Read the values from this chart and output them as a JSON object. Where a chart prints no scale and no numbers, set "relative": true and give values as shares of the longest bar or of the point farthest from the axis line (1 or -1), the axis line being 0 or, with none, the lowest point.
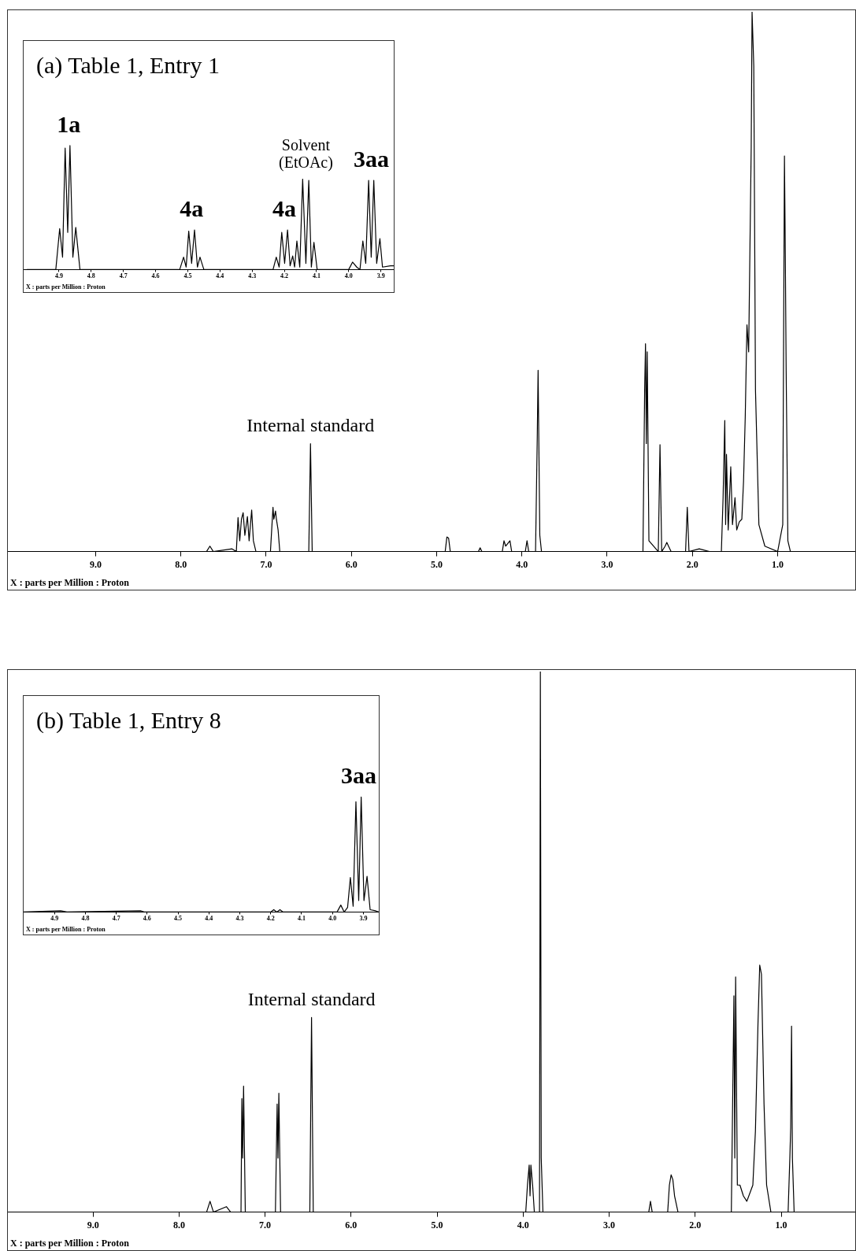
{
  "chart_data": [
    {
      "type": "line",
      "relative": true,
      "xlabel": "X : parts per Million : Proton",
      "xlim": [
        10.03,
        0.09
      ],
      "xticks": [
        {
          "value": 9,
          "label": "9.0"
        },
        {
          "value": 8,
          "label": "8.0"
        },
        {
          "value": 7,
          "label": "7.0"
        },
        {
          "value": 6,
          "label": "6.0"
        },
        {
          "value": 5,
          "label": "5.0"
        },
        {
          "value": 4,
          "label": "4.0"
        },
        {
          "value": 3,
          "label": "3.0"
        },
        {
          "value": 2,
          "label": "2.0"
        },
        {
          "value": 1,
          "label": "1.0"
        }
      ],
      "annotations": [
        {
          "text": "Internal standard",
          "x": 6.48,
          "y": 0.2
        }
      ],
      "series": [
        {
          "color": "#000000",
          "x": [
            10.0,
            7.7,
            7.66,
            7.62,
            7.4,
            7.35,
            7.33,
            7.31,
            7.29,
            7.27,
            7.25,
            7.22,
            7.2,
            7.17,
            7.15,
            7.12,
            6.95,
            6.92,
            6.91,
            6.89,
            6.88,
            6.86,
            6.84,
            6.5,
            6.48,
            6.46,
            4.9,
            4.88,
            4.86,
            4.84,
            4.51,
            4.49,
            4.47,
            4.23,
            4.21,
            4.19,
            4.14,
            4.12,
            3.96,
            3.94,
            3.92,
            3.84,
            3.82,
            3.81,
            3.79,
            3.77,
            2.58,
            2.56,
            2.55,
            2.54,
            2.53,
            2.51,
            2.4,
            2.38,
            2.36,
            2.32,
            2.3,
            2.28,
            2.25,
            2.08,
            2.06,
            2.04,
            1.92,
            1.8,
            1.66,
            1.64,
            1.62,
            1.61,
            1.6,
            1.58,
            1.55,
            1.53,
            1.5,
            1.48,
            1.45,
            1.42,
            1.4,
            1.38,
            1.36,
            1.34,
            1.31,
            1.3,
            1.28,
            1.26,
            1.22,
            1.15,
            1.0,
            0.94,
            0.92,
            0.91,
            0.9,
            0.88,
            0.85,
            0.1
          ],
          "values": [
            0,
            0,
            0.01,
            0,
            0.005,
            0,
            0.063,
            0.02,
            0.06,
            0.072,
            0.03,
            0.065,
            0.02,
            0.077,
            0.02,
            0,
            0,
            0.082,
            0.06,
            0.075,
            0.06,
            0.04,
            0,
            0,
            0.2,
            0,
            0,
            0.027,
            0.025,
            0,
            0,
            0.007,
            0,
            0,
            0.02,
            0.01,
            0.02,
            0,
            0,
            0.02,
            0,
            0,
            0.21,
            0.336,
            0.03,
            0,
            0,
            0.3,
            0.385,
            0.2,
            0.37,
            0.02,
            0,
            0.198,
            0,
            0.01,
            0.017,
            0.01,
            0,
            0,
            0.082,
            0,
            0.005,
            0,
            0,
            0.1,
            0.243,
            0.05,
            0.18,
            0.04,
            0.157,
            0.05,
            0.1,
            0.04,
            0.055,
            0.06,
            0.13,
            0.25,
            0.42,
            0.37,
            0.75,
            1,
            0.9,
            0.3,
            0.05,
            0.01,
            0,
            0.05,
            0.733,
            0.55,
            0.334,
            0.02,
            0,
            0
          ]
        }
      ]
    },
    {
      "type": "line",
      "relative": true,
      "title": "(a) Table 1, Entry 1",
      "xlabel": "X : parts per Million : Proton",
      "xlim": [
        5.01,
        3.86
      ],
      "xticks": [
        4.9,
        4.8,
        4.7,
        4.6,
        4.5,
        4.4,
        4.3,
        4.2,
        4.1,
        {
          "value": 4,
          "label": "4.0"
        },
        3.9
      ],
      "annotations": [
        {
          "text": "1a",
          "x": 4.87,
          "y": 1.0
        },
        {
          "text": "4a",
          "x": 4.488,
          "y": 0.32
        },
        {
          "text": "4a",
          "x": 4.2,
          "y": 0.32
        },
        {
          "text": "Solvent (EtOAc)",
          "x": 4.133,
          "y": 0.73
        },
        {
          "text": "3aa",
          "x": 3.93,
          "y": 0.72
        }
      ],
      "series": [
        {
          "color": "#000000",
          "x": [
            5.0,
            4.91,
            4.898,
            4.889,
            4.881,
            4.873,
            4.866,
            4.857,
            4.848,
            4.835,
            4.525,
            4.513,
            4.505,
            4.497,
            4.488,
            4.479,
            4.47,
            4.462,
            4.45,
            4.235,
            4.225,
            4.216,
            4.208,
            4.199,
            4.19,
            4.182,
            4.174,
            4.168,
            4.161,
            4.152,
            4.143,
            4.133,
            4.124,
            4.116,
            4.108,
            4.098,
            4.0,
            3.988,
            3.975,
            3.965,
            3.956,
            3.947,
            3.938,
            3.93,
            3.922,
            3.913,
            3.903,
            3.895,
            3.87,
            3.86
          ],
          "values": [
            0,
            0,
            0.33,
            0.1,
            0.98,
            0.3,
            1.0,
            0.1,
            0.34,
            0,
            0,
            0.1,
            0.02,
            0.31,
            0.05,
            0.32,
            0.02,
            0.1,
            0,
            0,
            0.1,
            0.02,
            0.3,
            0.05,
            0.32,
            0.03,
            0.11,
            0.02,
            0.23,
            0.02,
            0.73,
            0.05,
            0.72,
            0.02,
            0.22,
            0,
            0,
            0.06,
            0.02,
            0,
            0.23,
            0.05,
            0.72,
            0.1,
            0.72,
            0.05,
            0.25,
            0.02,
            0.03,
            0.03
          ]
        }
      ]
    },
    {
      "type": "line",
      "relative": true,
      "xlabel": "X : parts per Million : Proton",
      "xlim": [
        9.99,
        0.14
      ],
      "xticks": [
        {
          "value": 9,
          "label": "9.0"
        },
        {
          "value": 8,
          "label": "8.0"
        },
        {
          "value": 7,
          "label": "7.0"
        },
        {
          "value": 6,
          "label": "6.0"
        },
        {
          "value": 5,
          "label": "5.0"
        },
        {
          "value": 4,
          "label": "4.0"
        },
        {
          "value": 3,
          "label": "3.0"
        },
        {
          "value": 2,
          "label": "2.0"
        },
        {
          "value": 1,
          "label": "1.0"
        }
      ],
      "annotations": [
        {
          "text": "Internal standard",
          "x": 6.46,
          "y": 0.36
        }
      ],
      "series": [
        {
          "color": "#000000",
          "x": [
            9.9,
            7.68,
            7.64,
            7.6,
            7.45,
            7.4,
            7.28,
            7.27,
            7.26,
            7.25,
            7.23,
            6.88,
            6.86,
            6.85,
            6.84,
            6.82,
            6.48,
            6.46,
            6.44,
            3.97,
            3.95,
            3.93,
            3.92,
            3.91,
            3.89,
            3.87,
            3.81,
            3.8,
            3.79,
            3.77,
            2.54,
            2.52,
            2.5,
            2.32,
            2.3,
            2.28,
            2.26,
            2.24,
            2.2,
            1.58,
            1.55,
            1.54,
            1.53,
            1.51,
            1.48,
            1.44,
            1.4,
            1.33,
            1.3,
            1.27,
            1.25,
            1.23,
            1.2,
            1.17,
            1.12,
            0.92,
            0.9,
            0.89,
            0.88,
            0.87,
            0.85,
            0.2
          ],
          "values": [
            0,
            0,
            0.02,
            0,
            0.01,
            0,
            0,
            0.21,
            0.1,
            0.233,
            0,
            0,
            0.2,
            0.1,
            0.22,
            0,
            0,
            0.36,
            0,
            0,
            0.05,
            0.087,
            0.03,
            0.087,
            0.05,
            0,
            0,
            1,
            0.1,
            0,
            0,
            0.02,
            0,
            0,
            0.05,
            0.069,
            0.06,
            0.03,
            0,
            0,
            0.4,
            0.1,
            0.435,
            0.05,
            0.05,
            0.03,
            0.02,
            0.05,
            0.15,
            0.35,
            0.457,
            0.44,
            0.2,
            0.05,
            0,
            0,
            0.1,
            0.156,
            0.344,
            0.1,
            0,
            0
          ]
        }
      ]
    },
    {
      "type": "line",
      "relative": true,
      "title": "(b) Table 1, Entry 8",
      "xlabel": "X : parts per Million : Proton",
      "xlim": [
        5.0,
        3.85
      ],
      "xticks": [
        4.9,
        4.8,
        4.7,
        4.6,
        4.5,
        4.4,
        4.3,
        4.2,
        4.1,
        {
          "value": 4,
          "label": "4.0"
        },
        3.9
      ],
      "annotations": [
        {
          "text": "3aa",
          "x": 3.915,
          "y": 1.0
        }
      ],
      "series": [
        {
          "color": "#000000",
          "x": [
            5.0,
            4.88,
            4.86,
            4.62,
            4.61,
            4.2,
            4.19,
            4.18,
            4.17,
            4.16,
            3.985,
            3.973,
            3.962,
            3.951,
            3.942,
            3.933,
            3.924,
            3.915,
            3.907,
            3.898,
            3.888,
            3.878,
            3.86,
            3.85
          ],
          "values": [
            0,
            0.01,
            0,
            0.01,
            0,
            0,
            0.02,
            0,
            0.02,
            0,
            0,
            0.06,
            0,
            0.04,
            0.3,
            0.05,
            0.96,
            0.1,
            1.0,
            0.1,
            0.31,
            0.02,
            0.01,
            0
          ]
        }
      ]
    }
  ]
}
